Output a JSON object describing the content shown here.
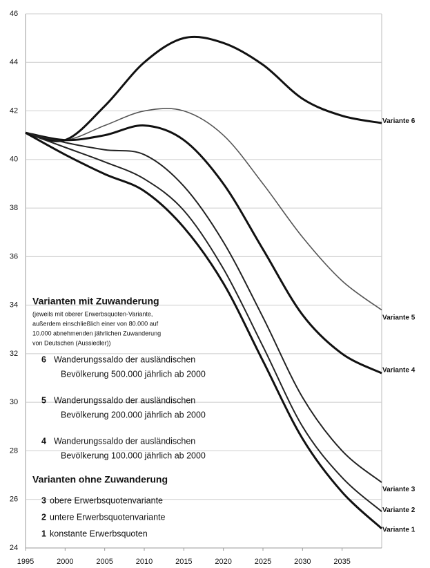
{
  "chart_data": {
    "type": "line",
    "x": [
      1995,
      2000,
      2005,
      2010,
      2015,
      2020,
      2025,
      2030,
      2035,
      2040
    ],
    "series": [
      {
        "name": "Variante 6",
        "color": "#111111",
        "values": [
          41.1,
          40.8,
          42.2,
          44.0,
          45.0,
          44.8,
          43.9,
          42.5,
          41.8,
          41.5
        ]
      },
      {
        "name": "Variante 5",
        "color": "#555555",
        "values": [
          41.1,
          40.8,
          41.4,
          42.0,
          42.0,
          41.0,
          39.0,
          36.8,
          35.0,
          33.8
        ]
      },
      {
        "name": "Variante 4",
        "color": "#111111",
        "values": [
          41.1,
          40.8,
          41.0,
          41.4,
          40.8,
          39.0,
          36.3,
          33.6,
          32.0,
          31.2
        ]
      },
      {
        "name": "Variante 3",
        "color": "#222222",
        "values": [
          41.1,
          40.7,
          40.4,
          40.2,
          38.9,
          36.6,
          33.5,
          30.2,
          28.0,
          26.7
        ]
      },
      {
        "name": "Variante 2",
        "color": "#222222",
        "values": [
          41.1,
          40.5,
          39.9,
          39.2,
          37.9,
          35.5,
          32.3,
          29.0,
          26.9,
          25.5
        ]
      },
      {
        "name": "Variante 1",
        "color": "#111111",
        "values": [
          41.1,
          40.2,
          39.4,
          38.7,
          37.2,
          34.9,
          31.7,
          28.5,
          26.3,
          24.8
        ]
      }
    ],
    "xlim": [
      1995,
      2040
    ],
    "xticks": [
      1995,
      2000,
      2005,
      2010,
      2015,
      2020,
      2025,
      2030,
      2035
    ],
    "ylim": [
      24,
      46
    ],
    "yticks": [
      24,
      26,
      28,
      30,
      32,
      34,
      36,
      38,
      40,
      42,
      44,
      46
    ],
    "grid": true,
    "annotations": {
      "heading_with": "Varianten mit Zuwanderung",
      "note": [
        "(jeweils mit oberer Erwerbsquoten-Variante,",
        "außerdem einschließlich einer von 80.000 auf",
        "10.000 abnehmenden jährlichen Zuwanderung",
        "von Deutschen (Aussiedler))"
      ],
      "items_with": [
        {
          "number": "6",
          "lines": [
            "Wanderungssaldo der ausländischen",
            "Bevölkerung 500.000 jährlich ab 2000"
          ]
        },
        {
          "number": "5",
          "lines": [
            "Wanderungssaldo der ausländischen",
            "Bevölkerung 200.000 jährlich ab 2000"
          ]
        },
        {
          "number": "4",
          "lines": [
            "Wanderungssaldo der ausländischen",
            "Bevölkerung 100.000 jährlich ab 2000"
          ]
        }
      ],
      "heading_without": "Varianten ohne Zuwanderung",
      "items_without": [
        {
          "number": "3",
          "text": "obere Erwerbsquotenvariante"
        },
        {
          "number": "2",
          "text": "untere Erwerbsquotenvariante"
        },
        {
          "number": "1",
          "text": "konstante Erwerbsquoten"
        }
      ]
    }
  }
}
